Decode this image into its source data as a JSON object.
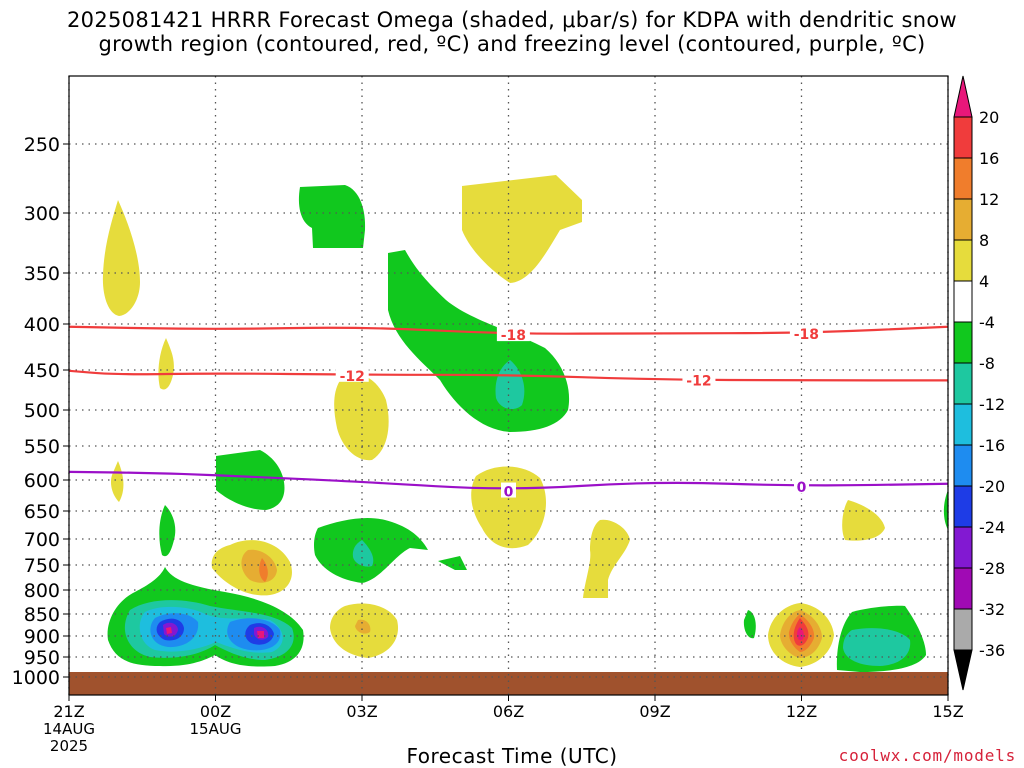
{
  "title": {
    "line1": "2025081421 HRRR Forecast Omega (shaded, μbar/s) for KDPA with dendritic snow",
    "line2": "growth region (contoured, red, ºC) and freezing level (contoured, purple, ºC)"
  },
  "credit": "coolwx.com/models",
  "chart_data": {
    "type": "contour",
    "xlabel": "Forecast Time (UTC)",
    "ylabel": "",
    "y_scale": "log-pressure (inverted)",
    "ylim": [
      1000,
      200
    ],
    "y_ticks": [
      "250",
      "300",
      "350",
      "400",
      "450",
      "500",
      "550",
      "600",
      "650",
      "700",
      "750",
      "800",
      "850",
      "900",
      "950",
      "1000"
    ],
    "x_ticks": [
      {
        "label": "21Z",
        "hour": 0,
        "sub": [
          "14AUG",
          "2025"
        ]
      },
      {
        "label": "00Z",
        "hour": 3,
        "sub": [
          "15AUG"
        ]
      },
      {
        "label": "03Z",
        "hour": 6,
        "sub": []
      },
      {
        "label": "06Z",
        "hour": 9,
        "sub": []
      },
      {
        "label": "09Z",
        "hour": 12,
        "sub": []
      },
      {
        "label": "12Z",
        "hour": 15,
        "sub": []
      },
      {
        "label": "15Z",
        "hour": 18,
        "sub": []
      }
    ],
    "xlim_hours": [
      0,
      18
    ],
    "grid": true,
    "colorbar": {
      "labels": [
        "20",
        "16",
        "12",
        "8",
        "4",
        "-4",
        "-8",
        "-12",
        "-16",
        "-20",
        "-24",
        "-28",
        "-32",
        "-36"
      ],
      "colors_top_to_bottom": [
        "#e8177a",
        "#f03c3c",
        "#f07d2c",
        "#e6ad32",
        "#e6dc3c",
        "#ffffff",
        "#11c81e",
        "#1ec8a0",
        "#1ebede",
        "#1e8cf0",
        "#1e3ce6",
        "#8219d2",
        "#a00ab4",
        "#aaaaaa",
        "#000000"
      ]
    },
    "contours": [
      {
        "name": "-18 isotherm",
        "color": "#f03c3c",
        "label": "-18",
        "points": [
          [
            0,
            403
          ],
          [
            3,
            406
          ],
          [
            6,
            403
          ],
          [
            9,
            411
          ],
          [
            12,
            410
          ],
          [
            15,
            410
          ],
          [
            18,
            403
          ]
        ]
      },
      {
        "name": "-12 isotherm",
        "color": "#f03c3c",
        "label": "-12",
        "points": [
          [
            0,
            451
          ],
          [
            1,
            456
          ],
          [
            3,
            454
          ],
          [
            6,
            456
          ],
          [
            9,
            456
          ],
          [
            12,
            462
          ],
          [
            15,
            463
          ],
          [
            18,
            463
          ]
        ]
      },
      {
        "name": "0 isotherm",
        "color": "#9b10c8",
        "label": "0",
        "points": [
          [
            0,
            588
          ],
          [
            2,
            590
          ],
          [
            4,
            596
          ],
          [
            6,
            603
          ],
          [
            9,
            617
          ],
          [
            12,
            602
          ],
          [
            15,
            610
          ],
          [
            18,
            606
          ]
        ]
      }
    ],
    "contour_label_positions": [
      {
        "label": "-18",
        "hour": 9.1,
        "p": 411
      },
      {
        "label": "-18",
        "hour": 15.1,
        "p": 410
      },
      {
        "label": "-12",
        "hour": 5.8,
        "p": 456
      },
      {
        "label": "-12",
        "hour": 12.9,
        "p": 462
      },
      {
        "label": "0",
        "hour": 9.0,
        "p": 617
      },
      {
        "label": "0",
        "hour": 15.0,
        "p": 610
      }
    ],
    "omega_features": [
      {
        "name": "sinking-300hPa-21z",
        "value_range": [
          4,
          8
        ],
        "color": "#e6dc3c"
      },
      {
        "name": "rising-300hPa-02z",
        "value_range": [
          -8,
          -4
        ],
        "color": "#11c81e"
      },
      {
        "name": "rising-400-500hPa-04z-06z",
        "value_range": [
          -12,
          -4
        ],
        "color": "#11c81e"
      },
      {
        "name": "sinking-300hPa-06z",
        "value_range": [
          4,
          8
        ],
        "color": "#e6dc3c"
      },
      {
        "name": "rising-900hPa-22z-01z",
        "value_range": [
          -36,
          -4
        ],
        "color": "#1ebede"
      },
      {
        "name": "sinking-900hPa-12z",
        "value_range": [
          4,
          24
        ],
        "color": "#f03c3c"
      },
      {
        "name": "rising-900hPa-13z",
        "value_range": [
          -12,
          -4
        ],
        "color": "#1ec8a0"
      }
    ],
    "ground": {
      "below_hpa": 985,
      "color": "#a0522d"
    }
  }
}
